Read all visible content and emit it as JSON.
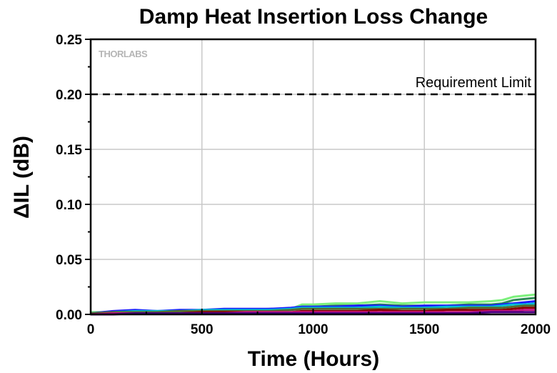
{
  "chart_data": {
    "type": "line",
    "title": "Damp Heat Insertion Loss Change",
    "xlabel": "Time (Hours)",
    "ylabel": "ΔIL (dB)",
    "xlim": [
      0,
      2000
    ],
    "ylim": [
      0,
      0.25
    ],
    "xticks": [
      0,
      500,
      1000,
      1500,
      2000
    ],
    "xtick_labels": [
      "0",
      "500",
      "1000",
      "1500",
      "2000"
    ],
    "yticks": [
      0.0,
      0.05,
      0.1,
      0.15,
      0.2,
      0.25
    ],
    "ytick_labels": [
      "0.00",
      "0.05",
      "0.10",
      "0.15",
      "0.20",
      "0.25"
    ],
    "grid": true,
    "logo": "THORLABS",
    "reference_line": {
      "label": "Requirement Limit",
      "y": 0.2,
      "style": "dashed",
      "color": "#000000"
    },
    "x": [
      0,
      100,
      200,
      300,
      400,
      500,
      600,
      700,
      800,
      900,
      950,
      1000,
      1100,
      1200,
      1300,
      1400,
      1500,
      1600,
      1700,
      1800,
      1850,
      1900,
      1950,
      2000
    ],
    "series": [
      {
        "color": "#7cf07c",
        "values": [
          0.002,
          0.002,
          0.003,
          0.003,
          0.003,
          0.004,
          0.004,
          0.004,
          0.005,
          0.005,
          0.009,
          0.009,
          0.01,
          0.01,
          0.012,
          0.01,
          0.011,
          0.011,
          0.011,
          0.012,
          0.013,
          0.016,
          0.017,
          0.018
        ]
      },
      {
        "color": "#2e8b57",
        "values": [
          0.001,
          0.002,
          0.002,
          0.002,
          0.003,
          0.003,
          0.003,
          0.003,
          0.004,
          0.004,
          0.007,
          0.007,
          0.008,
          0.008,
          0.009,
          0.008,
          0.008,
          0.008,
          0.009,
          0.009,
          0.01,
          0.013,
          0.014,
          0.015
        ]
      },
      {
        "color": "#1a1aff",
        "values": [
          0.001,
          0.003,
          0.004,
          0.003,
          0.004,
          0.004,
          0.005,
          0.005,
          0.005,
          0.006,
          0.007,
          0.007,
          0.007,
          0.008,
          0.008,
          0.007,
          0.008,
          0.008,
          0.008,
          0.008,
          0.009,
          0.01,
          0.011,
          0.012
        ]
      },
      {
        "color": "#00bcd4",
        "values": [
          0.001,
          0.002,
          0.003,
          0.003,
          0.003,
          0.004,
          0.004,
          0.004,
          0.004,
          0.005,
          0.006,
          0.006,
          0.006,
          0.006,
          0.007,
          0.006,
          0.006,
          0.007,
          0.007,
          0.007,
          0.008,
          0.009,
          0.009,
          0.01
        ]
      },
      {
        "color": "#556b2f",
        "values": [
          0.001,
          0.002,
          0.002,
          0.002,
          0.003,
          0.003,
          0.003,
          0.003,
          0.003,
          0.004,
          0.005,
          0.005,
          0.005,
          0.005,
          0.005,
          0.005,
          0.005,
          0.005,
          0.006,
          0.006,
          0.006,
          0.007,
          0.008,
          0.008
        ]
      },
      {
        "color": "#8b0000",
        "values": [
          0.0,
          0.001,
          0.001,
          0.001,
          0.001,
          0.002,
          0.002,
          0.002,
          0.002,
          0.002,
          0.003,
          0.003,
          0.003,
          0.003,
          0.004,
          0.003,
          0.003,
          0.004,
          0.004,
          0.004,
          0.004,
          0.005,
          0.006,
          0.006
        ]
      },
      {
        "color": "#c71585",
        "values": [
          0.0,
          0.001,
          0.001,
          0.001,
          0.001,
          0.001,
          0.001,
          0.002,
          0.002,
          0.002,
          0.002,
          0.002,
          0.002,
          0.002,
          0.002,
          0.002,
          0.002,
          0.002,
          0.002,
          0.003,
          0.003,
          0.003,
          0.004,
          0.004
        ]
      },
      {
        "color": "#4b0082",
        "values": [
          0.0,
          0.0,
          0.001,
          0.001,
          0.001,
          0.001,
          0.001,
          0.001,
          0.001,
          0.001,
          0.001,
          0.001,
          0.001,
          0.001,
          0.001,
          0.001,
          0.001,
          0.001,
          0.001,
          0.002,
          0.002,
          0.002,
          0.002,
          0.002
        ]
      }
    ]
  }
}
